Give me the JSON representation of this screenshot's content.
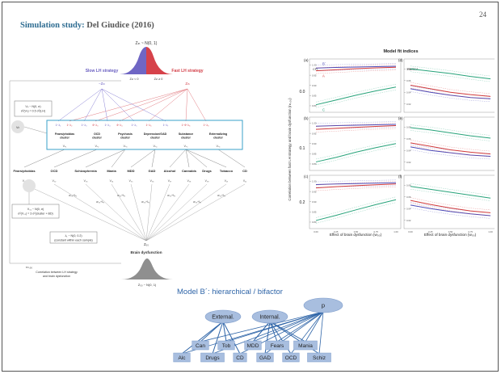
{
  "slide": {
    "title": "Simulation study:",
    "subtitle": "Del Giudice (2016)",
    "page_number": "24"
  },
  "left_diagram": {
    "z_top": "Zₗₕ ~ N(0, 1)",
    "slow_label": "Slow LH strategy",
    "fast_label": "Fast LH strategy",
    "slow_z": "−Zₗₕ",
    "fast_z": "Zₗₕ",
    "curve_neg": "Zₗₕ < 0",
    "curve_pos": "Zₗₕ ≥ 0",
    "var_box": "Vₕ ~ N(0, σ)\nσ²(Vₕ) = 0.5 σ²(LH)",
    "v_left": "Vₕ",
    "clusters": [
      "Fears/phobias cluster",
      "OCD cluster",
      "Psychosis cluster",
      "Depression/GAD cluster",
      "Substance cluster",
      "Externalizing cluster"
    ],
    "cluster_loadings": [
      "1−λ₁",
      "1−λ₂",
      "1−λ₃",
      "θ−λ₃",
      "1−λ₄",
      "θ−λ₄",
      "1−λ₅",
      "1−λ₆",
      "1−λ₇",
      "1−θ−λ₈",
      "1−λ₉"
    ],
    "cluster_v": [
      "Vₖ₁",
      "Vₖ₂",
      "Vₖ₃",
      "Vₖ₄",
      "Vₖ₅",
      "Vₖ₆"
    ],
    "disorders": [
      "Fears/phobias",
      "OCD",
      "Schizophrenia",
      "Mania",
      "MDD",
      "GAD",
      "Alcohol",
      "Cannabis",
      "Drugs",
      "Tobacco",
      "CD"
    ],
    "disorder_v": [
      "V₀₁",
      "V₀₂",
      "V₀₃",
      "V₀₄",
      "V₀₅",
      "V₀₆",
      "V₀₇",
      "V₀₈",
      "V₀₉",
      "V₁₀",
      "V₁₁"
    ],
    "bd_loadings": [
      "w₀₃+λ₃",
      "w₀₃+λ₃",
      "w₀₃+λ₃",
      "w₀₃+λ₃",
      "w₀₃+λ₃",
      "w₀₃+λ₃",
      "w₀₃+λ₃"
    ],
    "var_box2": "V₀₁ ~ N(0, σ)\nσ²(V₀₁) = 3 σ²(cluster + BD)",
    "lambda_box": "λ₁ ~ N(0, 0.2)\n(constant within each sample)",
    "brain_z": "Z₀₀",
    "brain_label": "Brain dysfunction",
    "corr_sym": "rₗₕ,₀₀",
    "corr_label": "Correlation between LH strategy and brain dysfunction",
    "z_bottom": "Z₀₀ ~ N(0, 1)"
  },
  "fit_chart": {
    "title": "Model fit indices",
    "ylabel": "Correlation between fast LH strategy and brain dysfunction (rₗₕ,₀₀)",
    "xlabel_left": "Effect of brain dysfunction (w₀₀)",
    "xlabel_right": "Effect of brain dysfunction (w₀₀)",
    "row_values": [
      "0.0",
      "0.1",
      "0.2"
    ],
    "panel_letters": [
      "(a)",
      "(b)",
      "(c)",
      "(d)",
      "(e)",
      "(f)"
    ],
    "left_index": "CFI",
    "right_index": "RMSEA",
    "series_labels": [
      "B´",
      "A",
      "C"
    ],
    "series_colors": {
      "B": "#4a4ab8",
      "A": "#d23b3b",
      "C": "#27a37a"
    }
  },
  "chart_data": [
    {
      "type": "line",
      "title": "Model fit indices — CFI",
      "xlabel": "Effect of brain dysfunction (w₀₀)",
      "ylabel": "CFI",
      "x": [
        0.0,
        0.25,
        0.5,
        0.75,
        1.0
      ],
      "x_ticks": [
        "0.00",
        "0.25",
        "0.50",
        "0.75",
        "1.00"
      ],
      "y_ticks": [
        "1.00",
        "0.95",
        "0.90",
        "0.85",
        "0.80"
      ],
      "ylim": [
        0.78,
        1.01
      ],
      "panels": [
        {
          "label": "(a)",
          "r": "0.0",
          "series": [
            {
              "name": "B´",
              "values": [
                0.985,
                0.988,
                0.99,
                0.992,
                0.994
              ]
            },
            {
              "name": "A",
              "values": [
                0.972,
                0.977,
                0.982,
                0.986,
                0.989
              ]
            },
            {
              "name": "C",
              "values": [
                0.805,
                0.828,
                0.852,
                0.873,
                0.892
              ]
            }
          ]
        },
        {
          "label": "(b)",
          "r": "0.1",
          "series": [
            {
              "name": "B´",
              "values": [
                0.985,
                0.988,
                0.99,
                0.992,
                0.994
              ]
            },
            {
              "name": "A",
              "values": [
                0.97,
                0.975,
                0.98,
                0.984,
                0.988
              ]
            },
            {
              "name": "C",
              "values": [
                0.81,
                0.832,
                0.858,
                0.88,
                0.9
              ]
            }
          ]
        },
        {
          "label": "(c)",
          "r": "0.2",
          "series": [
            {
              "name": "B´",
              "values": [
                0.984,
                0.987,
                0.989,
                0.991,
                0.993
              ]
            },
            {
              "name": "A",
              "values": [
                0.968,
                0.974,
                0.979,
                0.983,
                0.987
              ]
            },
            {
              "name": "C",
              "values": [
                0.808,
                0.833,
                0.86,
                0.886,
                0.91
              ]
            }
          ]
        }
      ]
    },
    {
      "type": "line",
      "title": "Model fit indices — RMSEA",
      "xlabel": "Effect of brain dysfunction (w₀₀)",
      "ylabel": "RMSEA",
      "x": [
        0.0,
        0.25,
        0.5,
        0.75,
        1.0
      ],
      "x_ticks": [
        "0.00",
        "0.25",
        "0.50",
        "0.75",
        "1.00"
      ],
      "y_ticks": [
        "0.08",
        "0.06",
        "0.04",
        "0.02"
      ],
      "ylim": [
        0.01,
        0.09
      ],
      "panels": [
        {
          "label": "(d)",
          "r": "0.0",
          "series": [
            {
              "name": "B´",
              "values": [
                0.046,
                0.04,
                0.035,
                0.031,
                0.029
              ]
            },
            {
              "name": "A",
              "values": [
                0.052,
                0.046,
                0.04,
                0.036,
                0.033
              ]
            },
            {
              "name": "C",
              "values": [
                0.08,
                0.076,
                0.072,
                0.067,
                0.063
              ]
            }
          ]
        },
        {
          "label": "(e)",
          "r": "0.1",
          "series": [
            {
              "name": "B´",
              "values": [
                0.046,
                0.04,
                0.036,
                0.032,
                0.03
              ]
            },
            {
              "name": "A",
              "values": [
                0.053,
                0.047,
                0.041,
                0.037,
                0.034
              ]
            },
            {
              "name": "C",
              "values": [
                0.079,
                0.075,
                0.07,
                0.065,
                0.061
              ]
            }
          ]
        },
        {
          "label": "(f)",
          "r": "0.2",
          "series": [
            {
              "name": "B´",
              "values": [
                0.046,
                0.04,
                0.035,
                0.031,
                0.028
              ]
            },
            {
              "name": "A",
              "values": [
                0.054,
                0.047,
                0.041,
                0.036,
                0.033
              ]
            },
            {
              "name": "C",
              "values": [
                0.078,
                0.073,
                0.068,
                0.063,
                0.058
              ]
            }
          ]
        }
      ]
    }
  ],
  "bifactor": {
    "title": "Model B´: hierarchical / bifactor",
    "general": "p",
    "external": "External.",
    "internal": "Internal.",
    "indicators": [
      "Alc",
      "Can",
      "Drugs",
      "Tob",
      "CD",
      "MDD",
      "GAD",
      "Fears",
      "OCD",
      "Mania",
      "Schiz"
    ]
  }
}
